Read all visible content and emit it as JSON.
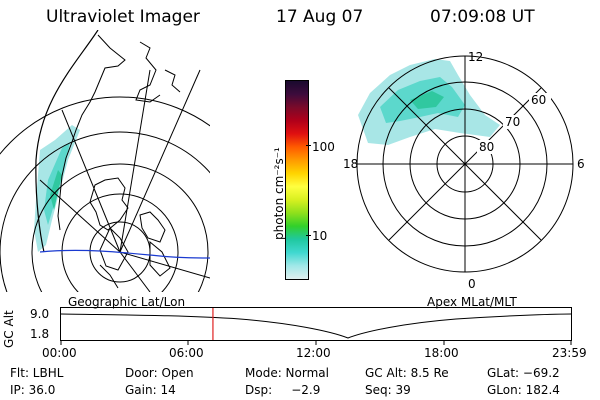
{
  "header": {
    "title": "Ultraviolet Imager",
    "date": "17 Aug 07",
    "time": "07:09:08  UT"
  },
  "left_panel": {
    "caption": "Geographic Lat/Lon"
  },
  "right_panel": {
    "caption": "Apex  MLat/MLT",
    "mlt_labels": {
      "top": "12",
      "bottom": "0",
      "left": "18",
      "right": "6"
    },
    "lat_labels": [
      "80",
      "70",
      "60"
    ]
  },
  "colorbar": {
    "unit_label": "photon cm⁻²s⁻¹",
    "ticks": [
      "100",
      "10"
    ],
    "colors_top_to_bottom": [
      "#1a0a2e",
      "#3d0b3c",
      "#7a0a2a",
      "#b0001a",
      "#e01010",
      "#ff5a00",
      "#ff9a00",
      "#ffd400",
      "#ffff40",
      "#d8f020",
      "#8ee01c",
      "#32d02a",
      "#20c8a0",
      "#40d8d0",
      "#a0e8e8",
      "#dfefef"
    ]
  },
  "altitude_strip": {
    "axis_label": "GC Alt",
    "ytick_top": "9.0",
    "ytick_bottom": "1.8",
    "xticks": [
      "00:00",
      "06:00",
      "12:00",
      "18:00",
      "23:59"
    ],
    "cursor_time_hours": 7.15,
    "cursor_color": "#e02020"
  },
  "info": {
    "row1": {
      "flt": "Flt: LBHL",
      "door": "Door: Open",
      "mode": "Mode: Normal",
      "gcalt": "GC Alt: 8.5 Re",
      "glat": "GLat: −69.2"
    },
    "row2": {
      "ip": "IP: 36.0",
      "gain": "Gain: 14",
      "dsp": "Dsp:     −2.9",
      "seq": "Seq: 39",
      "glon": "GLon: 182.4"
    }
  }
}
